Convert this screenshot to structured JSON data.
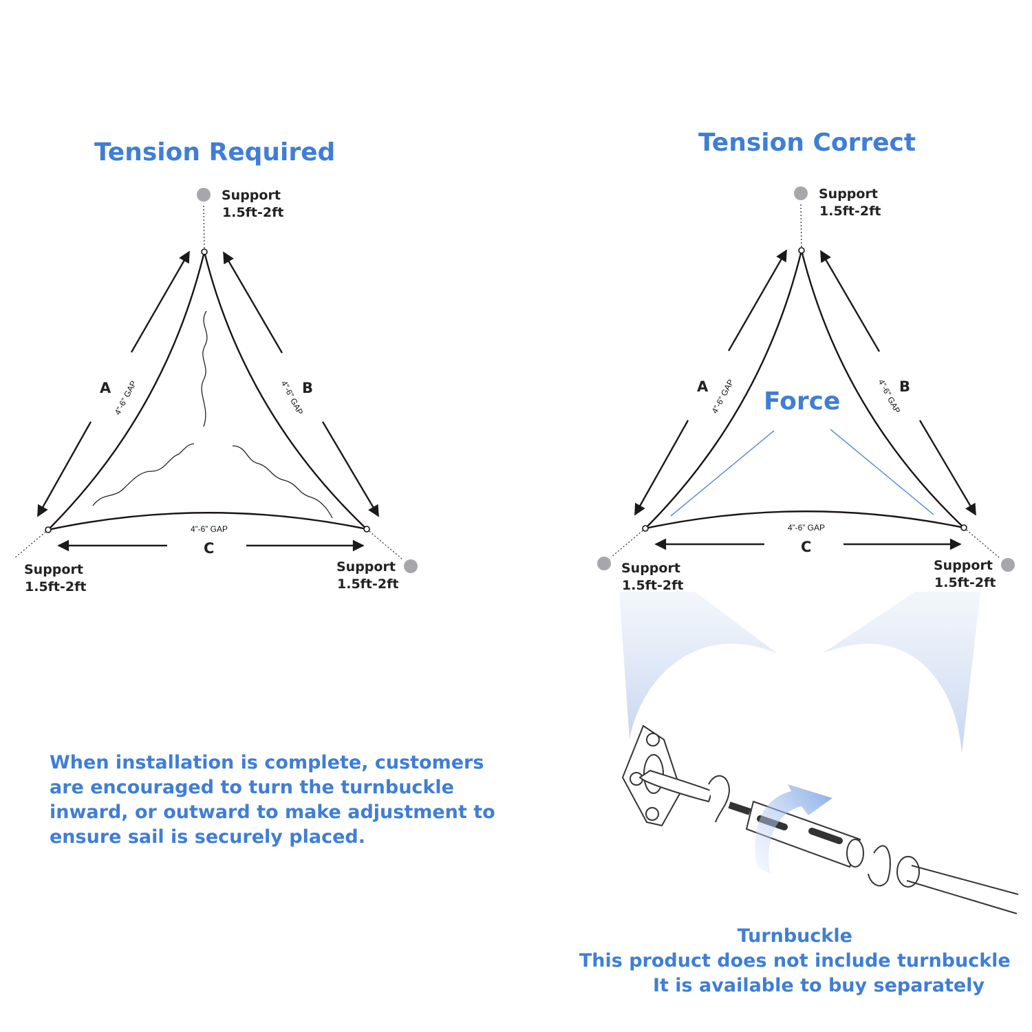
{
  "colors": {
    "accent": "#3f7ed6",
    "support_dot": "#a7a7ab",
    "force_line": "#5b8fdc"
  },
  "left_diagram": {
    "title": "Tension Required",
    "support_label": "Support",
    "support_size": "1.5ft-2ft",
    "sides": [
      "A",
      "B",
      "C"
    ],
    "gap_label": "4”-6” GAP"
  },
  "right_diagram": {
    "title": "Tension Correct",
    "support_label": "Support",
    "support_size": "1.5ft-2ft",
    "sides": [
      "A",
      "B",
      "C"
    ],
    "gap_label": "4”-6” GAP",
    "force_label": "Force"
  },
  "instructions": [
    "When installation is complete, customers",
    "are encouraged to turn the turnbuckle",
    "inward, or outward to make adjustment to",
    "ensure sail is securely placed."
  ],
  "turnbuckle_caption": {
    "title": "Turnbuckle",
    "line1": "This product does not include turnbuckle",
    "line2": "It is available to buy separately"
  }
}
